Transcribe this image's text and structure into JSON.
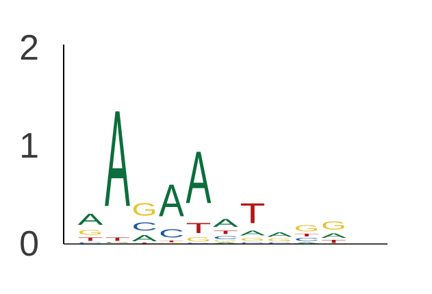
{
  "chart_data": {
    "type": "sequence-logo",
    "title": "",
    "xlabel": "",
    "ylabel": "",
    "ylim": [
      0,
      2
    ],
    "yticks": [
      "0",
      "1",
      "2"
    ],
    "grid": false,
    "legend": "none",
    "colors": {
      "A": "#0c6e3c",
      "C": "#1f57a4",
      "G": "#e9c231",
      "T": "#b41616"
    },
    "positions": [
      {
        "index": 1,
        "stack": [
          {
            "base": "C",
            "height": 0.02
          },
          {
            "base": "T",
            "height": 0.06
          },
          {
            "base": "G",
            "height": 0.08
          },
          {
            "base": "A",
            "height": 0.18
          }
        ]
      },
      {
        "index": 2,
        "stack": [
          {
            "base": "G",
            "height": 0.01
          },
          {
            "base": "C",
            "height": 0.01
          },
          {
            "base": "T",
            "height": 0.06
          },
          {
            "base": "A",
            "height": 1.57
          }
        ]
      },
      {
        "index": 3,
        "stack": [
          {
            "base": "T",
            "height": 0.01
          },
          {
            "base": "A",
            "height": 0.1
          },
          {
            "base": "C",
            "height": 0.14
          },
          {
            "base": "G",
            "height": 0.2
          }
        ]
      },
      {
        "index": 4,
        "stack": [
          {
            "base": "G",
            "height": 0.01
          },
          {
            "base": "T",
            "height": 0.03
          },
          {
            "base": "C",
            "height": 0.14
          },
          {
            "base": "A",
            "height": 0.52
          }
        ]
      },
      {
        "index": 5,
        "stack": [
          {
            "base": "C",
            "height": 0.01
          },
          {
            "base": "G",
            "height": 0.07
          },
          {
            "base": "T",
            "height": 0.17
          },
          {
            "base": "A",
            "height": 0.85
          }
        ]
      },
      {
        "index": 6,
        "stack": [
          {
            "base": "A",
            "height": 0.02
          },
          {
            "base": "G",
            "height": 0.02
          },
          {
            "base": "C",
            "height": 0.05
          },
          {
            "base": "T",
            "height": 0.06
          },
          {
            "base": "A",
            "height": 0.13
          }
        ]
      },
      {
        "index": 7,
        "stack": [
          {
            "base": "C",
            "height": 0.02
          },
          {
            "base": "G",
            "height": 0.05
          },
          {
            "base": "A",
            "height": 0.08
          },
          {
            "base": "T",
            "height": 0.33
          }
        ]
      },
      {
        "index": 8,
        "stack": [
          {
            "base": "C",
            "height": 0.02
          },
          {
            "base": "G",
            "height": 0.04
          },
          {
            "base": "A",
            "height": 0.07
          }
        ]
      },
      {
        "index": 9,
        "stack": [
          {
            "base": "A",
            "height": 0.02
          },
          {
            "base": "C",
            "height": 0.05
          },
          {
            "base": "T",
            "height": 0.04
          },
          {
            "base": "G",
            "height": 0.1
          }
        ]
      },
      {
        "index": 10,
        "stack": [
          {
            "base": "T",
            "height": 0.05
          },
          {
            "base": "A",
            "height": 0.07
          },
          {
            "base": "G",
            "height": 0.14
          }
        ]
      }
    ]
  }
}
